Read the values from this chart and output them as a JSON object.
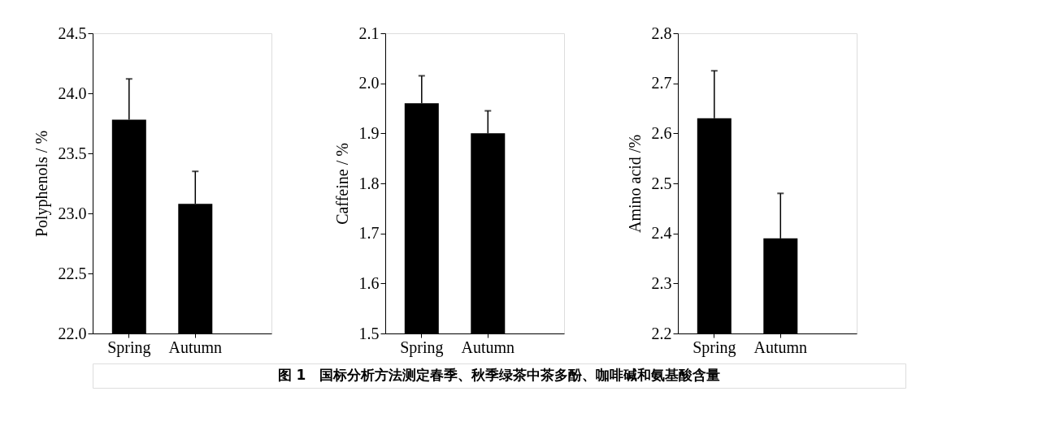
{
  "chart_data": [
    {
      "type": "bar",
      "categories": [
        "Spring",
        "Autumn"
      ],
      "values": [
        23.78,
        23.08
      ],
      "color": "#000000",
      "errors": [
        [
          23.78,
          24.12
        ],
        [
          23.08,
          23.35
        ]
      ],
      "ylabel": "Polyphenols / %",
      "ylim": [
        22.0,
        24.5
      ],
      "yticks": [
        {
          "value": 22,
          "label": "22.0"
        },
        22.5,
        {
          "value": 23,
          "label": "23.0"
        },
        23.5,
        {
          "value": 24,
          "label": "24.0"
        },
        24.5
      ],
      "grid": false,
      "annotations": [
        "图 1　国标分析方法测定春季、秋季绿茶中茶多酚、咖啡碱和氨基酸含量"
      ]
    },
    {
      "type": "bar",
      "categories": [
        "Spring",
        "Autumn"
      ],
      "values": [
        1.96,
        1.9
      ],
      "color": "#000000",
      "errors": [
        [
          1.96,
          2.015
        ],
        [
          1.9,
          1.945
        ]
      ],
      "ylabel": "Caffeine / %",
      "ylim": [
        1.5,
        2.1
      ],
      "yticks": [
        1.5,
        1.6,
        1.7,
        1.8,
        1.9,
        {
          "value": 2,
          "label": "2.0"
        },
        2.1
      ],
      "grid": false
    },
    {
      "type": "bar",
      "categories": [
        "Spring",
        "Autumn"
      ],
      "values": [
        2.63,
        2.39
      ],
      "color": "#000000",
      "errors": [
        [
          2.63,
          2.725
        ],
        [
          2.39,
          2.48
        ]
      ],
      "ylabel": "Amino acid /%",
      "ylim": [
        2.2,
        2.8
      ],
      "yticks": [
        2.2,
        2.3,
        2.4,
        2.5,
        2.6,
        2.7,
        2.8
      ],
      "grid": false
    }
  ]
}
